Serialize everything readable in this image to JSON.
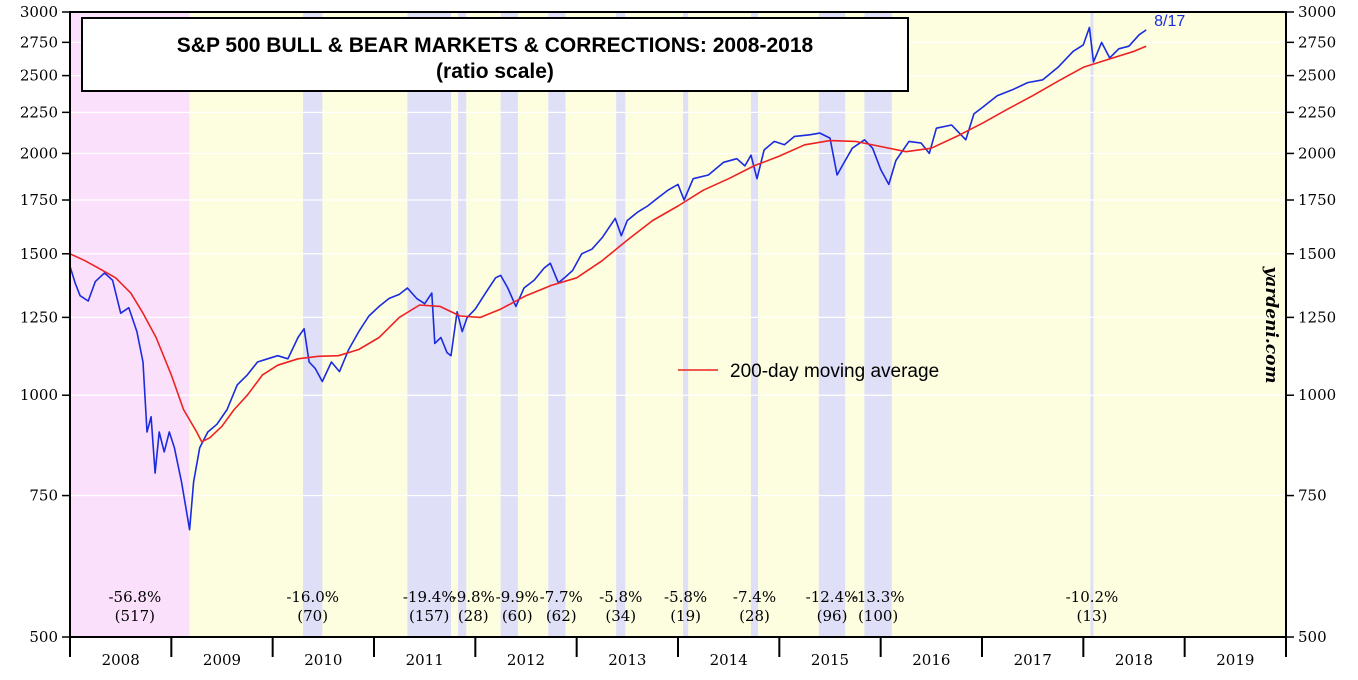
{
  "chart_data": {
    "type": "line",
    "title": "S&P 500 BULL & BEAR MARKETS & CORRECTIONS: 2008-2018",
    "subtitle": "(ratio scale)",
    "scale": "log",
    "xlim": [
      2008.0,
      2020.0
    ],
    "ylim": [
      500,
      3000
    ],
    "yticks": [
      500,
      750,
      1000,
      1250,
      1500,
      1750,
      2000,
      2250,
      2500,
      2750,
      3000
    ],
    "ytick_labels": [
      "500",
      "750",
      "1000",
      "1250",
      "1500",
      "1750",
      "2000",
      "2250",
      "2500",
      "2750",
      "3000"
    ],
    "year_labels": [
      "2008",
      "2009",
      "2010",
      "2011",
      "2012",
      "2013",
      "2014",
      "2015",
      "2016",
      "2017",
      "2018",
      "2019"
    ],
    "watermark": "yardeni.com",
    "last_point_label": "8/17",
    "legend": [
      {
        "name": "200-day moving average",
        "color": "#ee2222"
      }
    ],
    "colors": {
      "bear_market": "#fbe0fb",
      "bull_market": "#fdfde0",
      "correction": "#dfdff8",
      "sp500": "#1a2be0",
      "ma200": "#ee2222"
    },
    "periods": [
      {
        "type": "bear",
        "start": 2008.0,
        "end": 2009.18
      },
      {
        "type": "bull",
        "start": 2009.18,
        "end": 2020.0
      }
    ],
    "corrections": [
      {
        "start": 2010.3,
        "end": 2010.49,
        "pct": "-16.0%",
        "days": "(70)"
      },
      {
        "start": 2011.33,
        "end": 2011.76,
        "pct": "-19.4%",
        "days": "(157)"
      },
      {
        "start": 2011.83,
        "end": 2011.91,
        "pct": "-9.8%",
        "days": "(28)"
      },
      {
        "start": 2012.25,
        "end": 2012.42,
        "pct": "-9.9%",
        "days": "(60)"
      },
      {
        "start": 2012.72,
        "end": 2012.89,
        "pct": "-7.7%",
        "days": "(62)"
      },
      {
        "start": 2013.39,
        "end": 2013.48,
        "pct": "-5.8%",
        "days": "(34)"
      },
      {
        "start": 2014.05,
        "end": 2014.1,
        "pct": "-5.8%",
        "days": "(19)"
      },
      {
        "start": 2014.72,
        "end": 2014.79,
        "pct": "-7.4%",
        "days": "(28)"
      },
      {
        "start": 2015.39,
        "end": 2015.65,
        "pct": "-12.4%",
        "days": "(96)"
      },
      {
        "start": 2015.84,
        "end": 2016.11,
        "pct": "-13.3%",
        "days": "(100)"
      },
      {
        "start": 2018.07,
        "end": 2018.1,
        "pct": "-10.2%",
        "days": "(13)"
      }
    ],
    "bear_annotation": {
      "pct": "-56.8%",
      "days": "(517)",
      "center": 2008.64
    },
    "series": [
      {
        "name": "S&P 500",
        "points": [
          [
            2008.0,
            1447
          ],
          [
            2008.05,
            1380
          ],
          [
            2008.1,
            1330
          ],
          [
            2008.18,
            1310
          ],
          [
            2008.25,
            1385
          ],
          [
            2008.34,
            1420
          ],
          [
            2008.42,
            1390
          ],
          [
            2008.5,
            1265
          ],
          [
            2008.58,
            1285
          ],
          [
            2008.66,
            1200
          ],
          [
            2008.72,
            1100
          ],
          [
            2008.76,
            900
          ],
          [
            2008.8,
            940
          ],
          [
            2008.84,
            800
          ],
          [
            2008.88,
            900
          ],
          [
            2008.93,
            850
          ],
          [
            2008.98,
            900
          ],
          [
            2009.03,
            860
          ],
          [
            2009.1,
            780
          ],
          [
            2009.18,
            680
          ],
          [
            2009.22,
            780
          ],
          [
            2009.28,
            860
          ],
          [
            2009.36,
            900
          ],
          [
            2009.45,
            920
          ],
          [
            2009.55,
            960
          ],
          [
            2009.65,
            1030
          ],
          [
            2009.75,
            1060
          ],
          [
            2009.85,
            1100
          ],
          [
            2009.95,
            1110
          ],
          [
            2010.05,
            1120
          ],
          [
            2010.15,
            1110
          ],
          [
            2010.25,
            1180
          ],
          [
            2010.31,
            1210
          ],
          [
            2010.36,
            1100
          ],
          [
            2010.42,
            1080
          ],
          [
            2010.49,
            1040
          ],
          [
            2010.58,
            1100
          ],
          [
            2010.66,
            1070
          ],
          [
            2010.75,
            1140
          ],
          [
            2010.85,
            1200
          ],
          [
            2010.95,
            1255
          ],
          [
            2011.05,
            1290
          ],
          [
            2011.15,
            1320
          ],
          [
            2011.25,
            1335
          ],
          [
            2011.33,
            1360
          ],
          [
            2011.42,
            1320
          ],
          [
            2011.5,
            1300
          ],
          [
            2011.57,
            1340
          ],
          [
            2011.6,
            1160
          ],
          [
            2011.66,
            1180
          ],
          [
            2011.72,
            1130
          ],
          [
            2011.76,
            1120
          ],
          [
            2011.82,
            1270
          ],
          [
            2011.87,
            1200
          ],
          [
            2011.92,
            1250
          ],
          [
            2012.0,
            1280
          ],
          [
            2012.1,
            1340
          ],
          [
            2012.2,
            1400
          ],
          [
            2012.25,
            1410
          ],
          [
            2012.32,
            1360
          ],
          [
            2012.4,
            1290
          ],
          [
            2012.48,
            1360
          ],
          [
            2012.58,
            1390
          ],
          [
            2012.68,
            1440
          ],
          [
            2012.74,
            1460
          ],
          [
            2012.82,
            1380
          ],
          [
            2012.88,
            1400
          ],
          [
            2012.96,
            1430
          ],
          [
            2013.05,
            1500
          ],
          [
            2013.15,
            1520
          ],
          [
            2013.25,
            1570
          ],
          [
            2013.38,
            1660
          ],
          [
            2013.44,
            1580
          ],
          [
            2013.5,
            1650
          ],
          [
            2013.6,
            1690
          ],
          [
            2013.7,
            1720
          ],
          [
            2013.8,
            1760
          ],
          [
            2013.9,
            1800
          ],
          [
            2014.0,
            1830
          ],
          [
            2014.06,
            1750
          ],
          [
            2014.15,
            1860
          ],
          [
            2014.3,
            1880
          ],
          [
            2014.45,
            1950
          ],
          [
            2014.58,
            1970
          ],
          [
            2014.66,
            1930
          ],
          [
            2014.72,
            1990
          ],
          [
            2014.78,
            1860
          ],
          [
            2014.85,
            2020
          ],
          [
            2014.95,
            2070
          ],
          [
            2015.05,
            2050
          ],
          [
            2015.15,
            2100
          ],
          [
            2015.3,
            2110
          ],
          [
            2015.4,
            2120
          ],
          [
            2015.5,
            2090
          ],
          [
            2015.57,
            1880
          ],
          [
            2015.62,
            1930
          ],
          [
            2015.72,
            2030
          ],
          [
            2015.84,
            2080
          ],
          [
            2015.92,
            2030
          ],
          [
            2016.0,
            1910
          ],
          [
            2016.08,
            1830
          ],
          [
            2016.15,
            1960
          ],
          [
            2016.28,
            2070
          ],
          [
            2016.4,
            2060
          ],
          [
            2016.48,
            2000
          ],
          [
            2016.55,
            2150
          ],
          [
            2016.7,
            2170
          ],
          [
            2016.84,
            2080
          ],
          [
            2016.92,
            2240
          ],
          [
            2017.0,
            2280
          ],
          [
            2017.15,
            2360
          ],
          [
            2017.3,
            2400
          ],
          [
            2017.45,
            2450
          ],
          [
            2017.6,
            2470
          ],
          [
            2017.75,
            2560
          ],
          [
            2017.9,
            2680
          ],
          [
            2018.0,
            2730
          ],
          [
            2018.06,
            2870
          ],
          [
            2018.1,
            2600
          ],
          [
            2018.18,
            2750
          ],
          [
            2018.26,
            2630
          ],
          [
            2018.35,
            2700
          ],
          [
            2018.45,
            2720
          ],
          [
            2018.55,
            2810
          ],
          [
            2018.62,
            2850
          ]
        ]
      },
      {
        "name": "200-day moving average",
        "points": [
          [
            2008.0,
            1500
          ],
          [
            2008.15,
            1470
          ],
          [
            2008.3,
            1435
          ],
          [
            2008.45,
            1400
          ],
          [
            2008.6,
            1340
          ],
          [
            2008.72,
            1265
          ],
          [
            2008.85,
            1180
          ],
          [
            2009.0,
            1060
          ],
          [
            2009.12,
            960
          ],
          [
            2009.25,
            900
          ],
          [
            2009.3,
            875
          ],
          [
            2009.38,
            885
          ],
          [
            2009.5,
            915
          ],
          [
            2009.62,
            960
          ],
          [
            2009.75,
            1000
          ],
          [
            2009.9,
            1060
          ],
          [
            2010.05,
            1090
          ],
          [
            2010.25,
            1110
          ],
          [
            2010.45,
            1118
          ],
          [
            2010.65,
            1120
          ],
          [
            2010.85,
            1140
          ],
          [
            2011.05,
            1180
          ],
          [
            2011.25,
            1250
          ],
          [
            2011.45,
            1295
          ],
          [
            2011.65,
            1290
          ],
          [
            2011.85,
            1255
          ],
          [
            2012.05,
            1250
          ],
          [
            2012.25,
            1280
          ],
          [
            2012.5,
            1330
          ],
          [
            2012.75,
            1370
          ],
          [
            2013.0,
            1400
          ],
          [
            2013.25,
            1470
          ],
          [
            2013.5,
            1560
          ],
          [
            2013.75,
            1650
          ],
          [
            2014.0,
            1720
          ],
          [
            2014.25,
            1800
          ],
          [
            2014.5,
            1860
          ],
          [
            2014.75,
            1930
          ],
          [
            2015.0,
            1985
          ],
          [
            2015.25,
            2050
          ],
          [
            2015.5,
            2075
          ],
          [
            2015.75,
            2070
          ],
          [
            2016.0,
            2040
          ],
          [
            2016.25,
            2010
          ],
          [
            2016.5,
            2030
          ],
          [
            2016.75,
            2100
          ],
          [
            2017.0,
            2180
          ],
          [
            2017.25,
            2270
          ],
          [
            2017.5,
            2360
          ],
          [
            2017.75,
            2460
          ],
          [
            2018.0,
            2560
          ],
          [
            2018.25,
            2620
          ],
          [
            2018.5,
            2680
          ],
          [
            2018.62,
            2720
          ]
        ]
      }
    ]
  }
}
